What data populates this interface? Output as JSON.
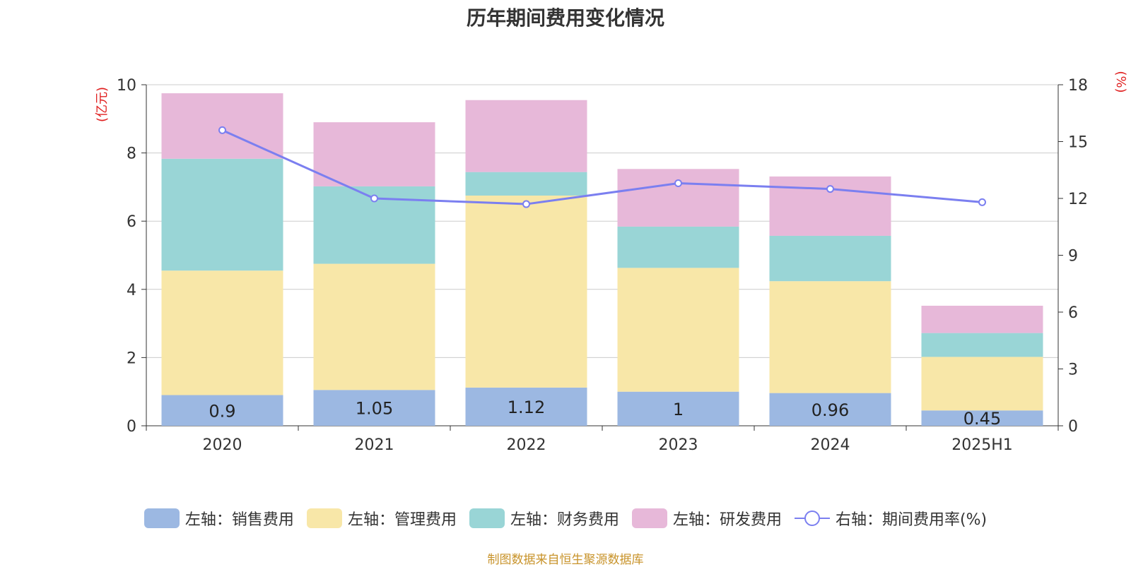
{
  "title": "历年期间费用变化情况",
  "source": "制图数据来自恒生聚源数据库",
  "chart_data": {
    "type": "bar",
    "stacked": true,
    "categories": [
      "2020",
      "2021",
      "2022",
      "2023",
      "2024",
      "2025H1"
    ],
    "left_axis": {
      "label": "(亿元)",
      "range": [
        0,
        10
      ],
      "ticks": [
        "0",
        "2",
        "4",
        "6",
        "8",
        "10"
      ]
    },
    "right_axis": {
      "label": "(%)",
      "range": [
        0,
        18
      ],
      "ticks": [
        "0",
        "3",
        "6",
        "9",
        "12",
        "15",
        "18"
      ]
    },
    "series": [
      {
        "name": "左轴：销售费用",
        "axis": "left",
        "color": "#9cb8e2",
        "values": [
          0.9,
          1.05,
          1.12,
          1,
          0.96,
          0.45
        ],
        "labels": [
          "0.9",
          "1.05",
          "1.12",
          "1",
          "0.96",
          "0.45"
        ]
      },
      {
        "name": "左轴：管理费用",
        "axis": "left",
        "color": "#f8e7a8",
        "values": [
          3.65,
          3.7,
          5.63,
          3.63,
          3.28,
          1.57
        ]
      },
      {
        "name": "左轴：财务费用",
        "axis": "left",
        "color": "#99d5d6",
        "values": [
          3.28,
          2.27,
          0.69,
          1.21,
          1.33,
          0.7
        ]
      },
      {
        "name": "左轴：研发费用",
        "axis": "left",
        "color": "#e7b8d9",
        "values": [
          1.92,
          1.88,
          2.11,
          1.69,
          1.74,
          0.8
        ]
      }
    ],
    "line_series": {
      "name": "右轴：期间费用率(%)",
      "axis": "right",
      "color": "#7b7ff0",
      "values": [
        15.6,
        12.0,
        11.7,
        12.8,
        12.5,
        11.8
      ]
    },
    "grid": true,
    "legend_position": "bottom"
  }
}
